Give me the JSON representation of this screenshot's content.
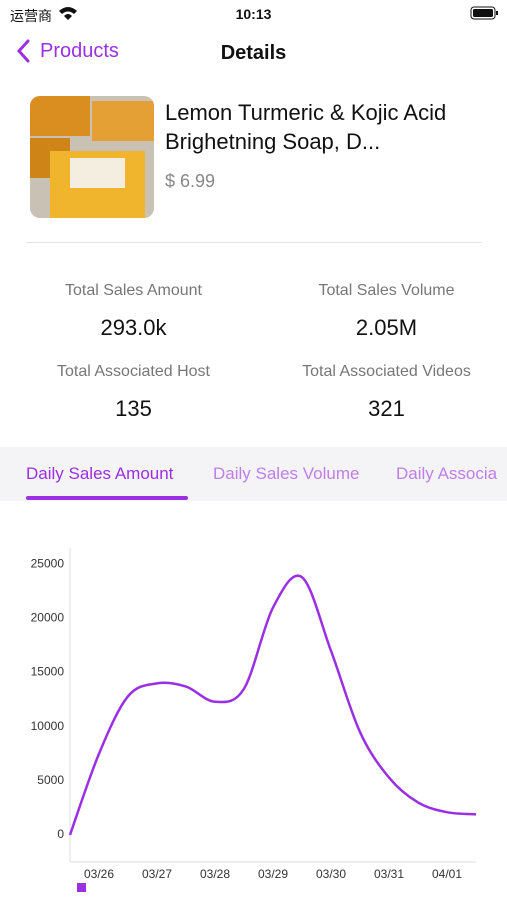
{
  "status_bar": {
    "carrier": "运营商",
    "time": "10:13"
  },
  "nav": {
    "back": "Products",
    "title": "Details"
  },
  "product": {
    "name": "Lemon Turmeric & Kojic Acid Brighetning Soap, D...",
    "price": "$ 6.99"
  },
  "stats": [
    {
      "label": "Total Sales Amount",
      "value": "293.0k"
    },
    {
      "label": "Total Sales Volume",
      "value": "2.05M"
    },
    {
      "label": "Total Associated Host",
      "value": "135"
    },
    {
      "label": "Total Associated Videos",
      "value": "321"
    }
  ],
  "tabs": [
    "Daily Sales Amount",
    "Daily Sales Volume",
    "Daily Associa"
  ],
  "chart_data": {
    "type": "line",
    "categories": [
      null,
      "03/26",
      null,
      "03/27",
      null,
      "03/28",
      null,
      "03/29",
      null,
      "03/30",
      null,
      "03/31",
      null,
      "04/01",
      null
    ],
    "series": [
      {
        "color": "#9b2fe3",
        "values": [
          0,
          7500,
          12800,
          14000,
          13700,
          12300,
          13500,
          21000,
          23800,
          17000,
          9500,
          5300,
          3000,
          2100,
          1900
        ]
      }
    ],
    "ylim": [
      -2500,
      26500
    ],
    "yticks": [
      0,
      5000,
      10000,
      15000,
      20000,
      25000
    ],
    "grid": false
  }
}
